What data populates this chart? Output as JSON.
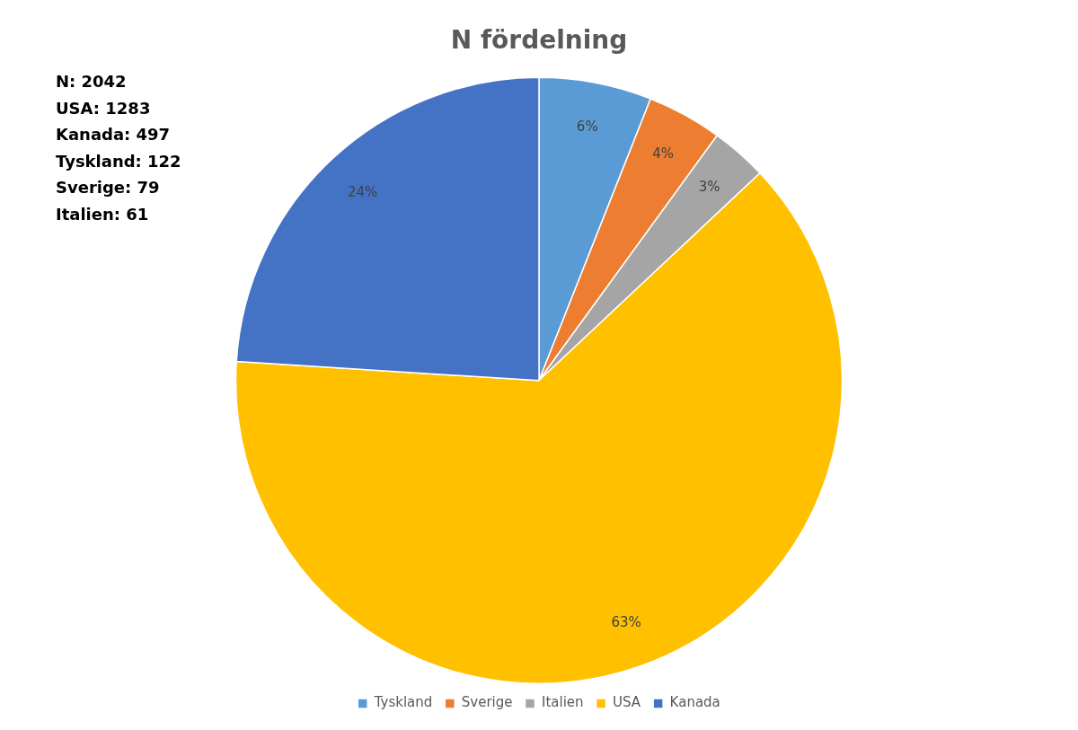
{
  "chart_data": {
    "type": "pie",
    "title": "N fördelning",
    "categories": [
      "Tyskland",
      "Sverige",
      "Italien",
      "USA",
      "Kanada"
    ],
    "values": [
      6,
      4,
      3,
      63,
      24
    ],
    "value_labels": [
      "6%",
      "4%",
      "3%",
      "63%",
      "24%"
    ],
    "colors": [
      "#5b9bd5",
      "#ed7d31",
      "#a5a5a5",
      "#ffc000",
      "#4472c4"
    ],
    "legend": "bottom",
    "annotations": [
      "N: 2042",
      "USA: 1283",
      "Kanada: 497",
      "Tyskland: 122",
      "Sverige: 79",
      "Italien: 61"
    ]
  }
}
